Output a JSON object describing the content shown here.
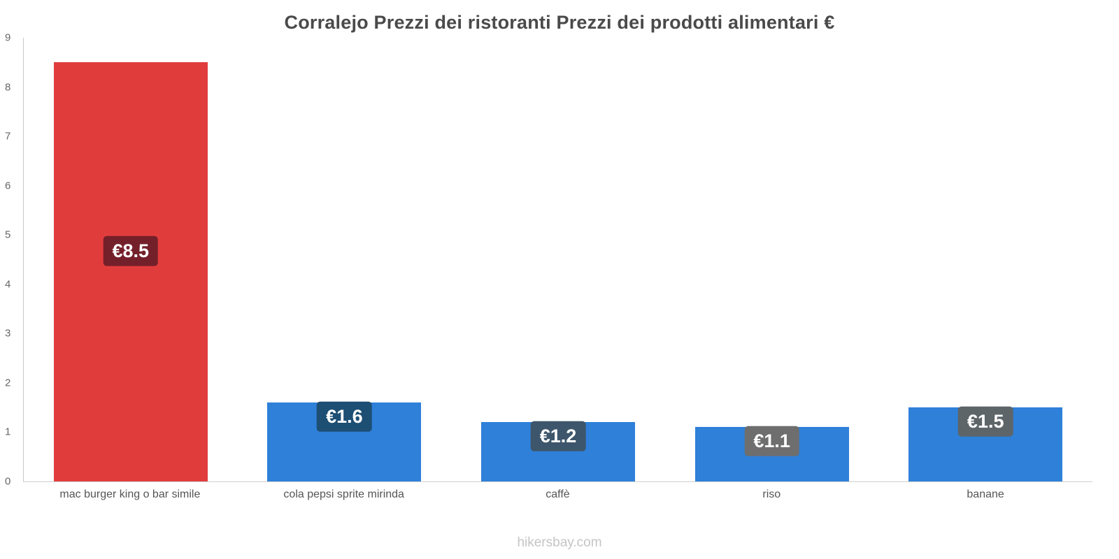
{
  "footer": "hikersbay.com",
  "chart_data": {
    "type": "bar",
    "title": "Corralejo Prezzi dei ristoranti Prezzi dei prodotti alimentari €",
    "categories": [
      "mac burger king o bar simile",
      "cola pepsi sprite mirinda",
      "caffè",
      "riso",
      "banane"
    ],
    "values": [
      8.5,
      1.6,
      1.2,
      1.1,
      1.5
    ],
    "value_labels": [
      "€8.5",
      "€1.6",
      "€1.2",
      "€1.1",
      "€1.5"
    ],
    "bar_colors": [
      "#e13c3c",
      "#2e80d9",
      "#2e80d9",
      "#2e80d9",
      "#2e80d9"
    ],
    "label_bg_colors": [
      "#74202a",
      "#1d4e74",
      "#3e566b",
      "#6e6e6e",
      "#5d6569"
    ],
    "currency": "€",
    "xlabel": "",
    "ylabel": "",
    "ylim": [
      0,
      9
    ],
    "y_ticks": [
      0,
      1,
      2,
      3,
      4,
      5,
      6,
      7,
      8,
      9
    ],
    "grid": false,
    "legend": false
  }
}
